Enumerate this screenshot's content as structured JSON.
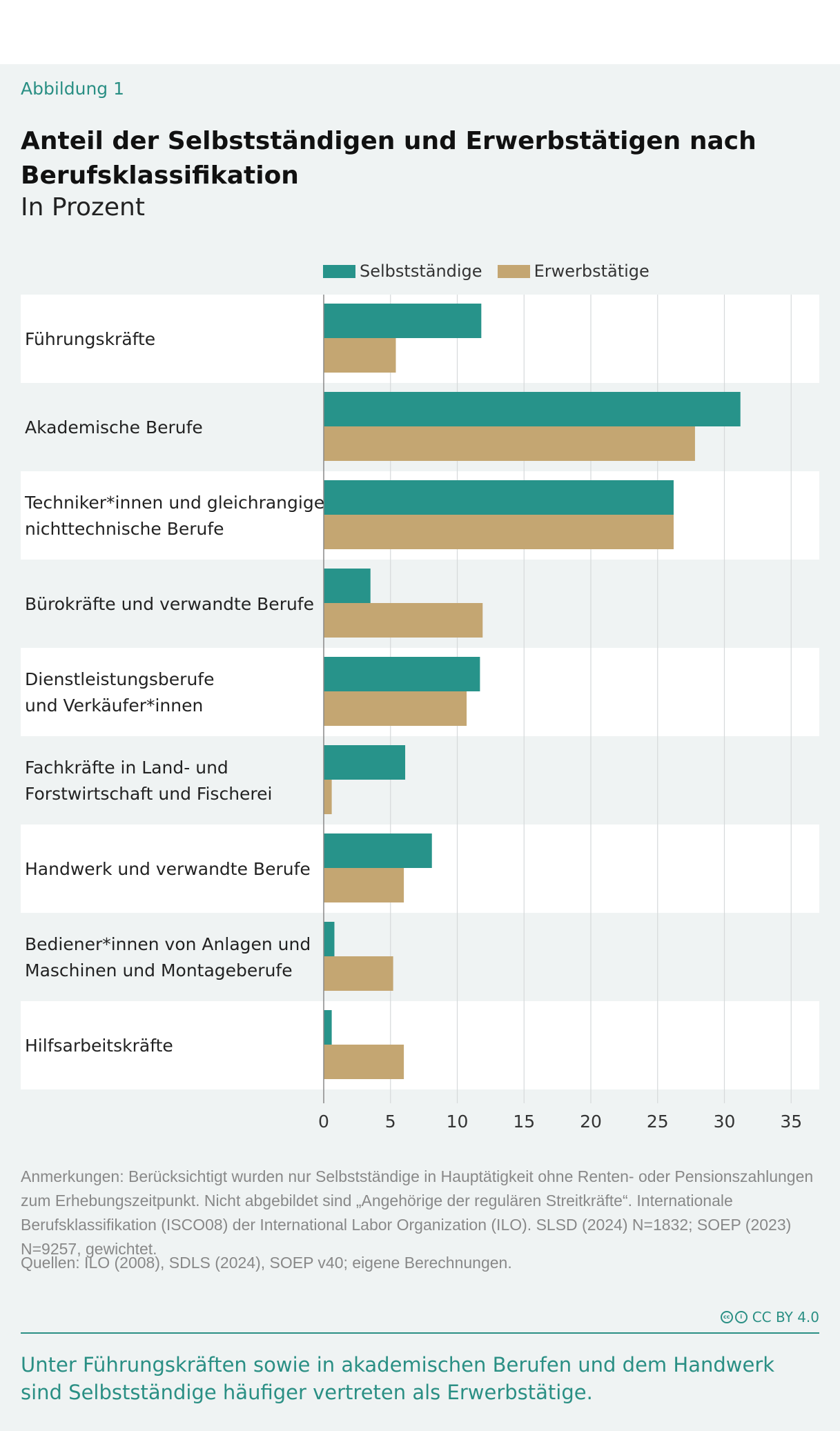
{
  "header": {
    "figure_label": "Abbildung 1",
    "title": "Anteil der Selbstständigen und Erwerbstätigen nach Berufsklassifikation",
    "subtitle": "In Prozent"
  },
  "colors": {
    "selbststaendige": "#27938a",
    "erwerbstaetige": "#c4a672",
    "accent": "#2a8f84",
    "band_light": "#ffffff",
    "band_dark": "#eff3f3"
  },
  "legend": [
    {
      "label": "Selbstständige",
      "color": "#27938a"
    },
    {
      "label": "Erwerbstätige",
      "color": "#c4a672"
    }
  ],
  "chart_data": {
    "type": "bar",
    "orientation": "horizontal",
    "categories": [
      [
        "Führungskräfte"
      ],
      [
        "Akademische Berufe"
      ],
      [
        "Techniker*innen und gleichrangige",
        "nichttechnische Berufe"
      ],
      [
        "Bürokräfte und verwandte Berufe"
      ],
      [
        "Dienstleistungsberufe",
        "und Verkäufer*innen"
      ],
      [
        "Fachkräfte in Land- und",
        "Forstwirtschaft und Fischerei"
      ],
      [
        "Handwerk und verwandte Berufe"
      ],
      [
        "Bediener*innen von Anlagen und",
        "Maschinen und Montageberufe"
      ],
      [
        "Hilfsarbeitskräfte"
      ]
    ],
    "series": [
      {
        "name": "Selbstständige",
        "values": [
          11.8,
          31.2,
          26.2,
          3.5,
          11.7,
          6.1,
          8.1,
          0.8,
          0.6
        ]
      },
      {
        "name": "Erwerbstätige",
        "values": [
          5.4,
          27.8,
          26.2,
          11.9,
          10.7,
          0.6,
          6.0,
          5.2,
          6.0
        ]
      }
    ],
    "xlim": [
      0,
      35
    ],
    "xticks": [
      "0",
      "5",
      "10",
      "15",
      "20",
      "25",
      "30",
      "35"
    ],
    "grid": true,
    "legend_position": "top"
  },
  "notes": "Anmerkungen: Berücksichtigt wurden nur Selbstständige in Hauptätigkeit ohne Renten- oder Pensionszahlungen zum Erhebungszeitpunkt. Nicht abgebildet sind „Angehörige der regulären Streitkräfte“. Internationale Berufsklassifikation (ISCO08) der International Labor Organization (ILO). SLSD (2024) N=1832; SOEP (2023) N=9257, gewichtet.",
  "sources": "Quellen: ILO (2008), SDLS (2024), SOEP v40; eigene Berechnungen.",
  "license": "CC BY 4.0",
  "takeaway": "Unter Führungskräften sowie in akademischen Berufen und dem Handwerk sind Selbstständige häufiger vertreten als Erwerbstätige."
}
